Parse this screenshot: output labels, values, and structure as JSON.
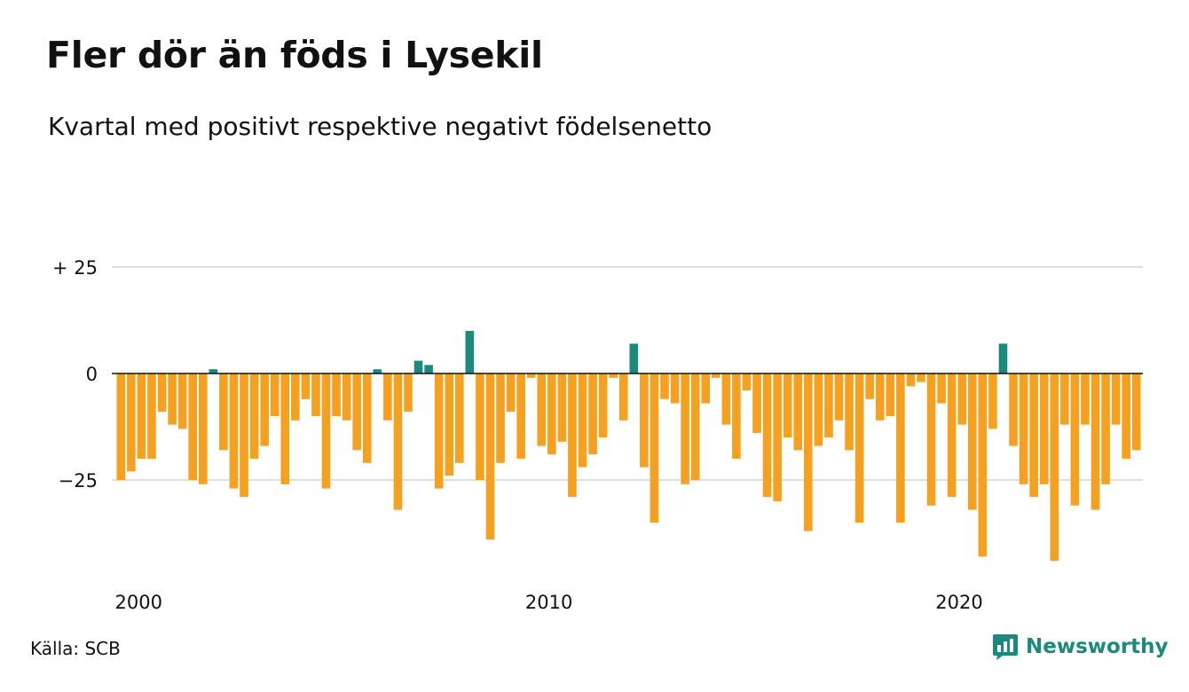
{
  "header": {
    "title": "Fler dör än föds i Lysekil",
    "subtitle": "Kvartal med positivt respektive negativt födelsenetto"
  },
  "footer": {
    "source": "Källa: SCB",
    "brand": "Newsworthy",
    "brand_icon": "newsworthy-logo-icon"
  },
  "colors": {
    "positive": "#1a8a7d",
    "negative": "#f6a01f",
    "grid": "#dddddd",
    "zero_line": "#111111",
    "brand": "#1a8a7d"
  },
  "chart_data": {
    "type": "bar",
    "title": "Fler dör än föds i Lysekil",
    "subtitle": "Kvartal med positivt respektive negativt födelsenetto",
    "xlabel": "",
    "ylabel": "",
    "x_start": "2000 Q1",
    "x_ticks": [
      "2000",
      "2010",
      "2020"
    ],
    "y_ticks": [
      {
        "value": 25,
        "label": "+ 25"
      },
      {
        "value": 0,
        "label": "0"
      },
      {
        "value": -25,
        "label": "−25"
      }
    ],
    "ylim": [
      -45,
      25
    ],
    "grid": true,
    "legend": "none",
    "values": [
      -25,
      -23,
      -20,
      -20,
      -9,
      -12,
      -13,
      -25,
      -26,
      1,
      -18,
      -27,
      -29,
      -20,
      -17,
      -10,
      -26,
      -11,
      -6,
      -10,
      -27,
      -10,
      -11,
      -18,
      -21,
      1,
      -11,
      -32,
      -9,
      3,
      2,
      -27,
      -24,
      -21,
      10,
      -25,
      -39,
      -21,
      -9,
      -20,
      -1,
      -17,
      -19,
      -16,
      -29,
      -22,
      -19,
      -15,
      -1,
      -11,
      7,
      -22,
      -35,
      -6,
      -7,
      -26,
      -25,
      -7,
      -1,
      -12,
      -20,
      -4,
      -14,
      -29,
      -30,
      -15,
      -18,
      -37,
      -17,
      -15,
      -11,
      -18,
      -35,
      -6,
      -11,
      -10,
      -35,
      -3,
      -2,
      -31,
      -7,
      -29,
      -12,
      -32,
      -43,
      -13,
      7,
      -17,
      -26,
      -29,
      -26,
      -44,
      -12,
      -31,
      -12,
      -32,
      -26,
      -12,
      -20,
      -18
    ]
  }
}
